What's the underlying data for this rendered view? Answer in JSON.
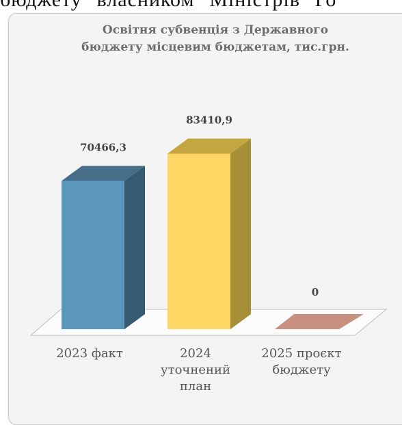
{
  "page": {
    "top_text": "бюджету \"власником\" Міністрів \"Го"
  },
  "chart_data": {
    "type": "bar",
    "title_lines": [
      "Освітня субвенція з Державного",
      "бюджету місцевим бюджетам, тис.грн."
    ],
    "categories": [
      {
        "lines": [
          "2023 факт"
        ]
      },
      {
        "lines": [
          "2024",
          "уточнений",
          "план"
        ]
      },
      {
        "lines": [
          "2025 проєкт",
          "бюджету"
        ]
      }
    ],
    "values": [
      70466.3,
      83410.9,
      0
    ],
    "value_labels": [
      "70466,3",
      "83410,9",
      "0"
    ],
    "ylim": [
      0,
      100000
    ],
    "grid": false,
    "legend": "none",
    "colors": [
      {
        "front": "#5b96bb",
        "side": "#365a70",
        "top": "#466e88"
      },
      {
        "front": "#fdd663",
        "side": "#a78f37",
        "top": "#c4a640"
      },
      {
        "front": "#c89080",
        "side": "#9c6d5f",
        "top": "#c89080"
      }
    ]
  }
}
